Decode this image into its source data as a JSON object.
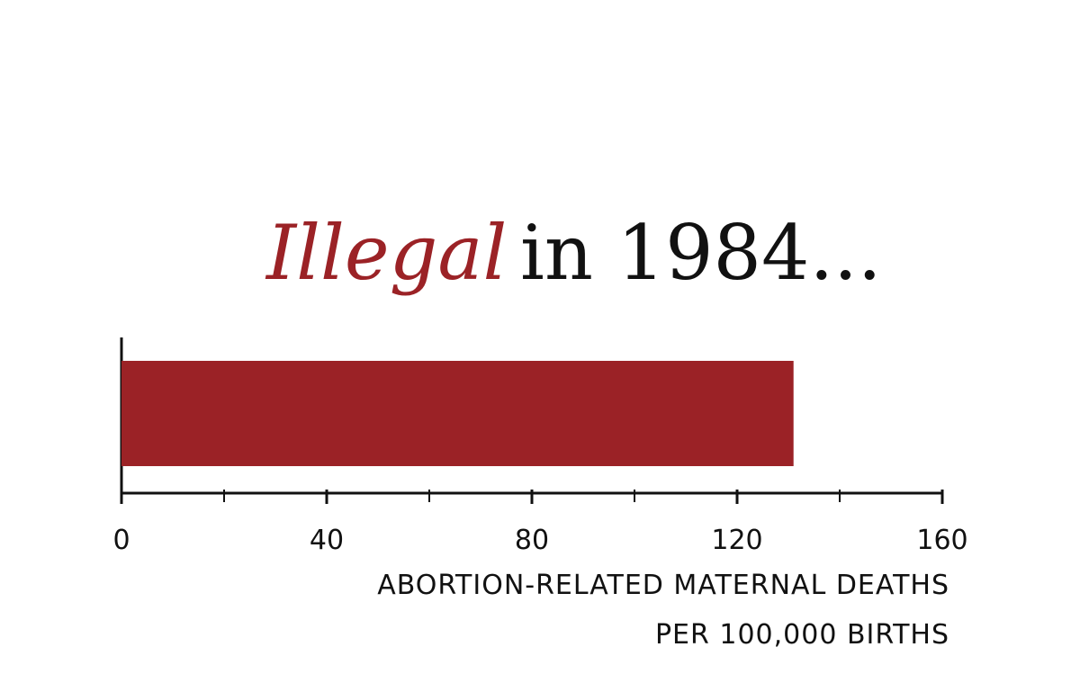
{
  "chart_data": {
    "type": "bar",
    "orientation": "horizontal",
    "title": [
      {
        "text": "Illegal",
        "color": "#9b2226"
      },
      {
        "text": "in 1984...",
        "color": "#111111"
      }
    ],
    "values": [
      131
    ],
    "color": "#9b2226",
    "xlim": [
      0,
      160
    ],
    "xticks": [
      0,
      40,
      80,
      120,
      160
    ],
    "xticks_minor": [
      20,
      60,
      100,
      140
    ],
    "xlabel": [
      "ABORTION-RELATED MATERNAL DEATHS",
      "PER 100,000 BIRTHS"
    ]
  }
}
